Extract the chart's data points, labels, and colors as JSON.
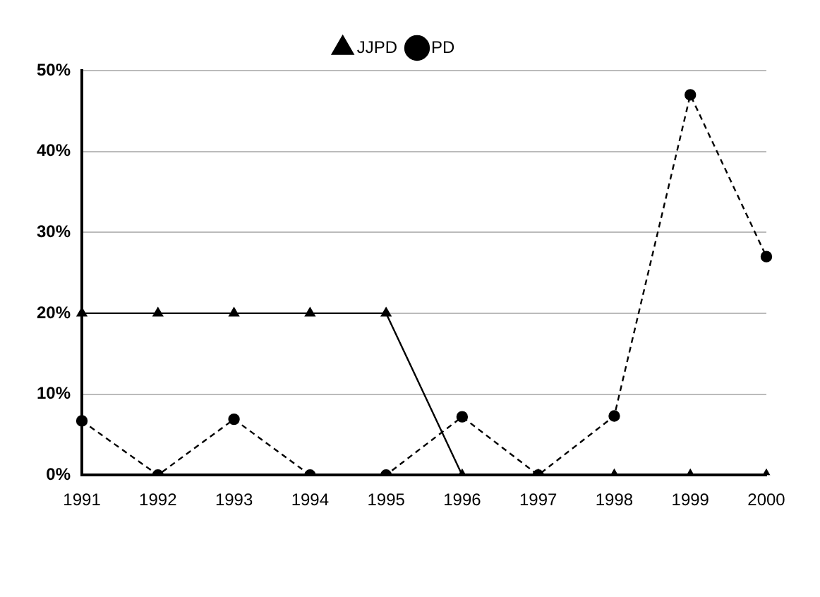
{
  "chart_data": {
    "type": "line",
    "categories": [
      "1991",
      "1992",
      "1993",
      "1994",
      "1995",
      "1996",
      "1997",
      "1998",
      "1999",
      "2000"
    ],
    "series": [
      {
        "name": "JJPD",
        "color": "#000000",
        "marker": "triangle",
        "line_style": "solid",
        "values": [
          20,
          20,
          20,
          20,
          20,
          0,
          0,
          0,
          0,
          0
        ]
      },
      {
        "name": "PD",
        "color": "#000000",
        "marker": "circle",
        "line_style": "dashed",
        "values": [
          6.7,
          0,
          6.9,
          0,
          0,
          7.2,
          0,
          7.3,
          47,
          27
        ]
      }
    ],
    "ylim": [
      0,
      50
    ],
    "yticks": [
      {
        "value": 0,
        "label": "0%"
      },
      {
        "value": 10,
        "label": "10%"
      },
      {
        "value": 20,
        "label": "20%"
      },
      {
        "value": 30,
        "label": "30%"
      },
      {
        "value": 40,
        "label": "40%"
      },
      {
        "value": 50,
        "label": "50%"
      }
    ],
    "grid": "y",
    "legend": "top"
  }
}
